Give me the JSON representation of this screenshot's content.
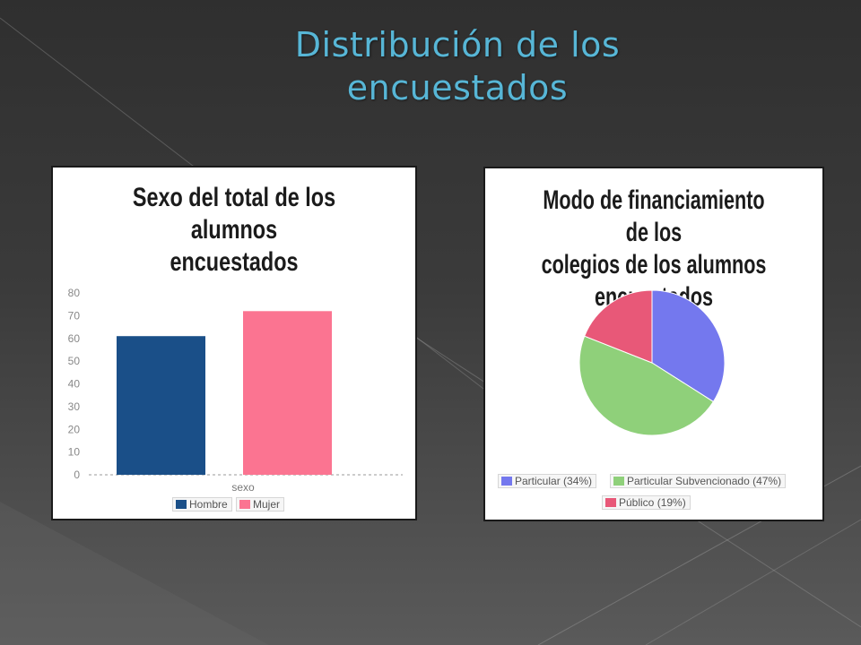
{
  "slide": {
    "title_line1": "Distribución de los",
    "title_line2": "encuestados",
    "title_color": "#57b6d6"
  },
  "chart_data": [
    {
      "type": "bar",
      "title_line1": "Sexo del total de los alumnos",
      "title_line2": "encuestados",
      "xlabel": "sexo",
      "ylabel": "",
      "categories": [
        "sexo"
      ],
      "series": [
        {
          "name": "Hombre",
          "values": [
            61
          ],
          "color": "#1a4f88"
        },
        {
          "name": "Mujer",
          "values": [
            72
          ],
          "color": "#fb7491"
        }
      ],
      "ylim": [
        0,
        80
      ],
      "yticks": [
        0,
        10,
        20,
        30,
        40,
        50,
        60,
        70,
        80
      ],
      "grid": false,
      "legend_position": "bottom"
    },
    {
      "type": "pie",
      "title_line1": "Modo de financiamiento de los",
      "title_line2": "colegios de los alumnos",
      "title_line3": "encuestados",
      "slices": [
        {
          "label": "Particular (34%)",
          "value": 34,
          "color": "#7478ee"
        },
        {
          "label": "Particular Subvencionado (47%)",
          "value": 47,
          "color": "#8fd07a"
        },
        {
          "label": "Público (19%)",
          "value": 19,
          "color": "#e85878"
        }
      ],
      "legend_position": "bottom"
    }
  ]
}
